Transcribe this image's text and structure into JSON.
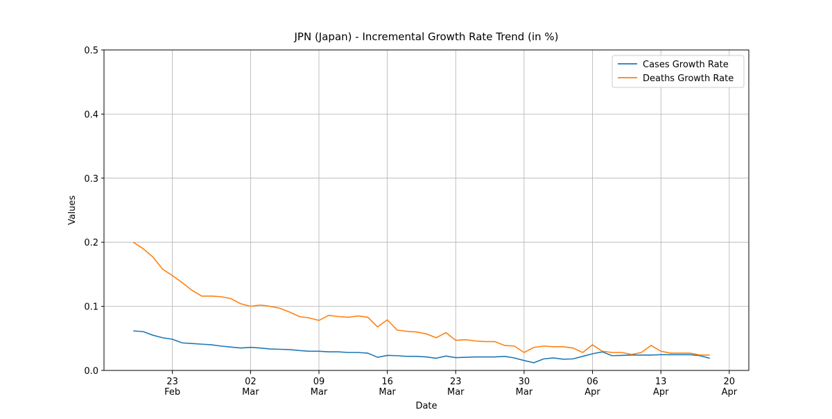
{
  "chart_data": {
    "type": "line",
    "title": "JPN (Japan) - Incremental Growth Rate Trend (in %)",
    "xlabel": "Date",
    "ylabel": "Values",
    "x": [
      "02-19",
      "02-20",
      "02-21",
      "02-22",
      "02-23",
      "02-24",
      "02-25",
      "02-26",
      "02-27",
      "02-28",
      "02-29",
      "03-01",
      "03-02",
      "03-03",
      "03-04",
      "03-05",
      "03-06",
      "03-07",
      "03-08",
      "03-09",
      "03-10",
      "03-11",
      "03-12",
      "03-13",
      "03-14",
      "03-15",
      "03-16",
      "03-17",
      "03-18",
      "03-19",
      "03-20",
      "03-21",
      "03-22",
      "03-23",
      "03-24",
      "03-25",
      "03-26",
      "03-27",
      "03-28",
      "03-29",
      "03-30",
      "03-31",
      "04-01",
      "04-02",
      "04-03",
      "04-04",
      "04-05",
      "04-06",
      "04-07",
      "04-08",
      "04-09",
      "04-10",
      "04-11",
      "04-12",
      "04-13",
      "04-14",
      "04-15",
      "04-16",
      "04-17",
      "04-18"
    ],
    "series": [
      {
        "name": "Cases Growth Rate",
        "color": "#1f77b4",
        "values": [
          0.0617,
          0.0606,
          0.055,
          0.051,
          0.0487,
          0.043,
          0.042,
          0.041,
          0.04,
          0.038,
          0.0365,
          0.035,
          0.036,
          0.035,
          0.0335,
          0.033,
          0.0325,
          0.031,
          0.03,
          0.03,
          0.029,
          0.029,
          0.028,
          0.028,
          0.027,
          0.0205,
          0.0235,
          0.023,
          0.022,
          0.022,
          0.021,
          0.019,
          0.0225,
          0.02,
          0.0205,
          0.021,
          0.021,
          0.021,
          0.022,
          0.0195,
          0.0155,
          0.012,
          0.018,
          0.0195,
          0.0175,
          0.018,
          0.022,
          0.026,
          0.029,
          0.023,
          0.0235,
          0.024,
          0.024,
          0.024,
          0.0245,
          0.0245,
          0.0245,
          0.0245,
          0.023,
          0.019
        ]
      },
      {
        "name": "Deaths Growth Rate",
        "color": "#ff7f0e",
        "values": [
          0.2,
          0.19,
          0.177,
          0.158,
          0.148,
          0.137,
          0.125,
          0.116,
          0.116,
          0.115,
          0.112,
          0.104,
          0.1,
          0.102,
          0.1,
          0.097,
          0.091,
          0.084,
          0.082,
          0.078,
          0.086,
          0.084,
          0.083,
          0.085,
          0.083,
          0.068,
          0.079,
          0.063,
          0.061,
          0.06,
          0.057,
          0.051,
          0.059,
          0.047,
          0.048,
          0.046,
          0.045,
          0.045,
          0.039,
          0.038,
          0.028,
          0.036,
          0.038,
          0.037,
          0.037,
          0.035,
          0.028,
          0.04,
          0.03,
          0.028,
          0.028,
          0.025,
          0.028,
          0.039,
          0.03,
          0.027,
          0.027,
          0.027,
          0.024,
          0.024
        ]
      }
    ],
    "xlim": [
      "02-16",
      "04-22"
    ],
    "xticks": [
      {
        "value": "02-23",
        "label": "23 Feb"
      },
      {
        "value": "03-02",
        "label": "02 Mar"
      },
      {
        "value": "03-09",
        "label": "09 Mar"
      },
      {
        "value": "03-16",
        "label": "16 Mar"
      },
      {
        "value": "03-23",
        "label": "23 Mar"
      },
      {
        "value": "03-30",
        "label": "30 Mar"
      },
      {
        "value": "04-06",
        "label": "06 Apr"
      },
      {
        "value": "04-13",
        "label": "13 Apr"
      },
      {
        "value": "04-20",
        "label": "20 Apr"
      }
    ],
    "ylim": [
      0,
      0.5
    ],
    "yticks": [
      {
        "value": 0,
        "label": "0.0"
      },
      {
        "value": 0.1,
        "label": "0.1"
      },
      {
        "value": 0.2,
        "label": "0.2"
      },
      {
        "value": 0.3,
        "label": "0.3"
      },
      {
        "value": 0.4,
        "label": "0.4"
      },
      {
        "value": 0.5,
        "label": "0.5"
      }
    ],
    "grid": true,
    "legend": "upper right"
  }
}
